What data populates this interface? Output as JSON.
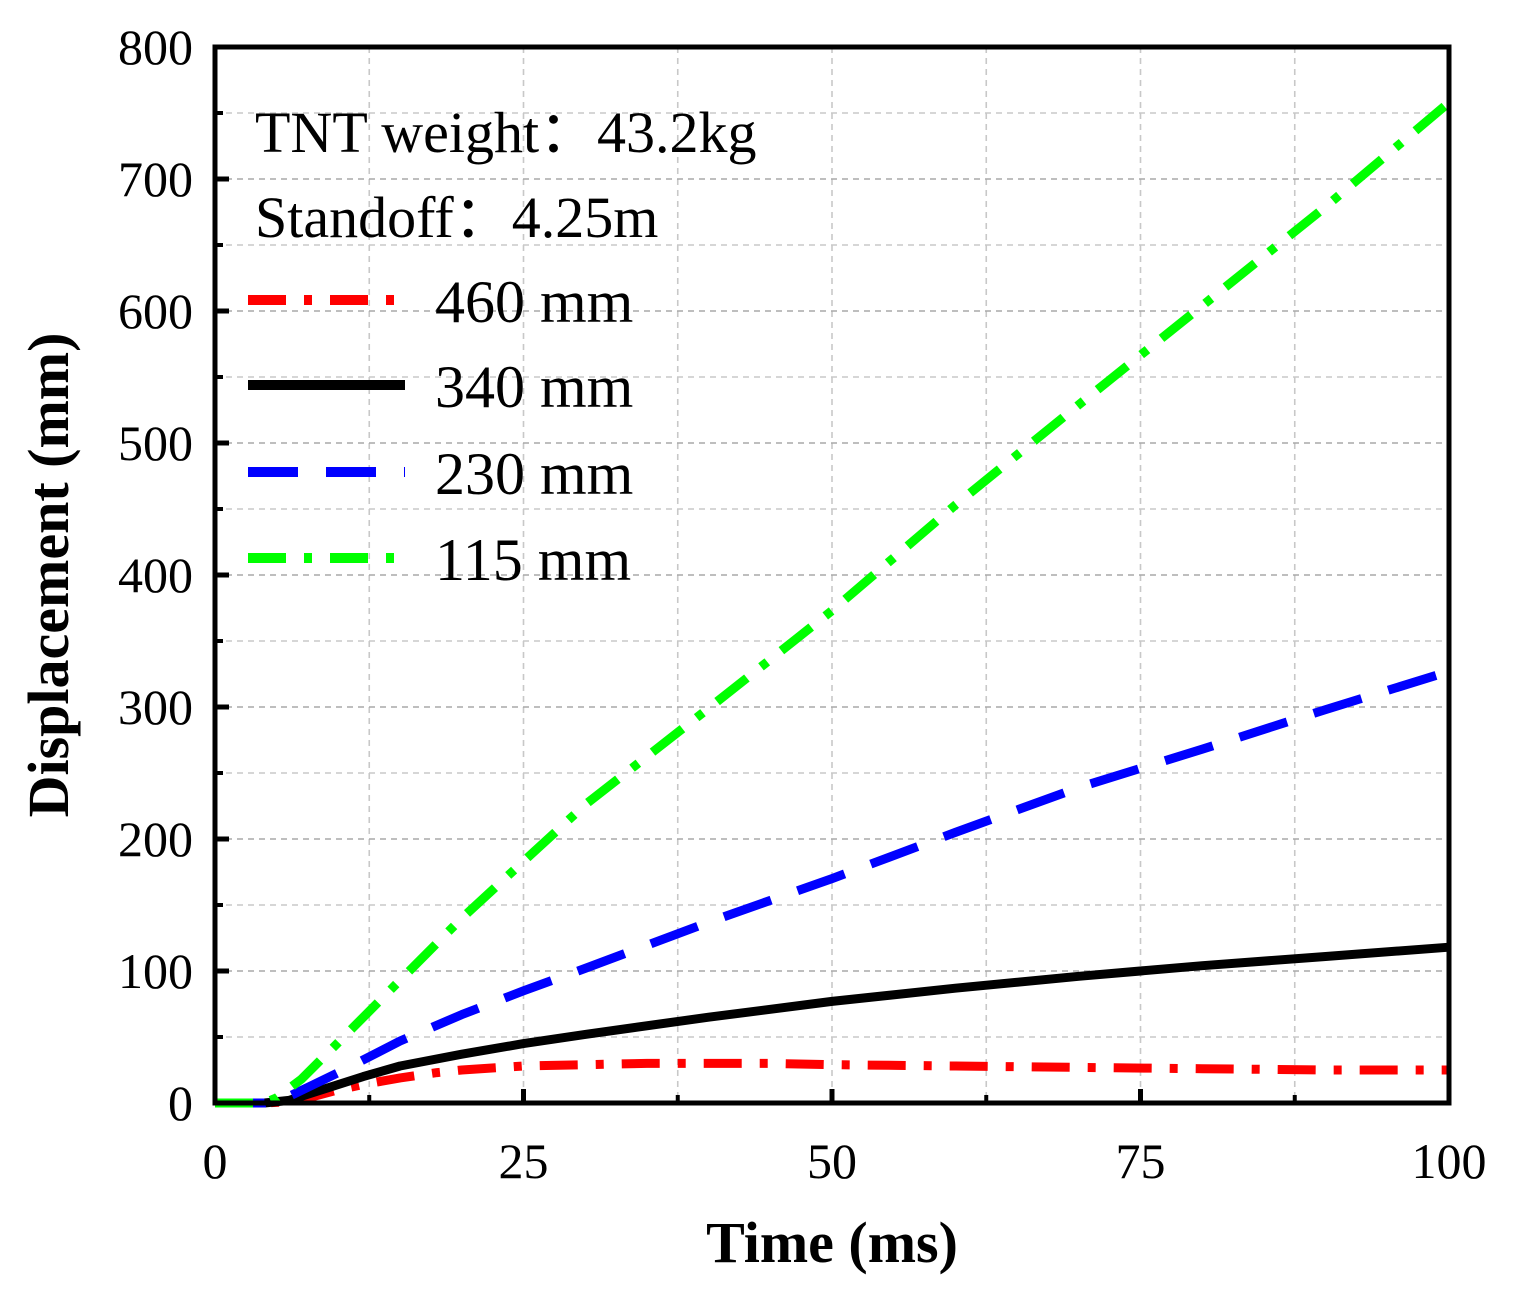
{
  "chart_data": {
    "type": "line",
    "xlabel": "Time (ms)",
    "ylabel": "Displacement (mm)",
    "xlim": [
      0,
      100
    ],
    "ylim": [
      0,
      800
    ],
    "xticks": [
      "0",
      "25",
      "50",
      "75",
      "100"
    ],
    "yticks": [
      "0",
      "100",
      "200",
      "300",
      "400",
      "500",
      "600",
      "700",
      "800"
    ],
    "grid": true,
    "legend_position": "top-left",
    "annotations": [
      "TNT weight：43.2kg",
      "Standoff：4.25m"
    ],
    "series": [
      {
        "name": "460 mm",
        "color": "#ff0000",
        "dash": "dash-dot",
        "x": [
          0,
          4,
          6,
          8,
          10,
          12,
          15,
          18,
          20,
          25,
          30,
          35,
          40,
          45,
          50,
          60,
          70,
          80,
          90,
          100
        ],
        "y": [
          0,
          0,
          1,
          5,
          10,
          14,
          19,
          23,
          25,
          28,
          29,
          30,
          30,
          30,
          29,
          28,
          27,
          26,
          25,
          25
        ]
      },
      {
        "name": "340 mm",
        "color": "#000000",
        "dash": "solid",
        "x": [
          0,
          4,
          6,
          8,
          10,
          12,
          15,
          20,
          25,
          30,
          40,
          50,
          60,
          70,
          80,
          90,
          100
        ],
        "y": [
          0,
          0,
          2,
          8,
          14,
          20,
          28,
          37,
          45,
          52,
          65,
          77,
          87,
          96,
          104,
          111,
          118
        ]
      },
      {
        "name": "230 mm",
        "color": "#0000ff",
        "dash": "dash",
        "x": [
          0,
          4,
          6,
          8,
          10,
          15,
          20,
          25,
          30,
          40,
          50,
          60,
          70,
          80,
          90,
          100
        ],
        "y": [
          0,
          0,
          5,
          14,
          23,
          47,
          67,
          85,
          102,
          137,
          170,
          205,
          239,
          268,
          298,
          327
        ]
      },
      {
        "name": "115 mm",
        "color": "#00ff00",
        "dash": "dash-dot",
        "x": [
          0,
          4,
          5,
          7,
          10,
          15,
          20,
          25,
          30,
          40,
          50,
          60,
          70,
          80,
          90,
          100
        ],
        "y": [
          0,
          0,
          4,
          18,
          46,
          93,
          140,
          183,
          226,
          299,
          373,
          453,
          529,
          604,
          679,
          758
        ]
      }
    ]
  }
}
